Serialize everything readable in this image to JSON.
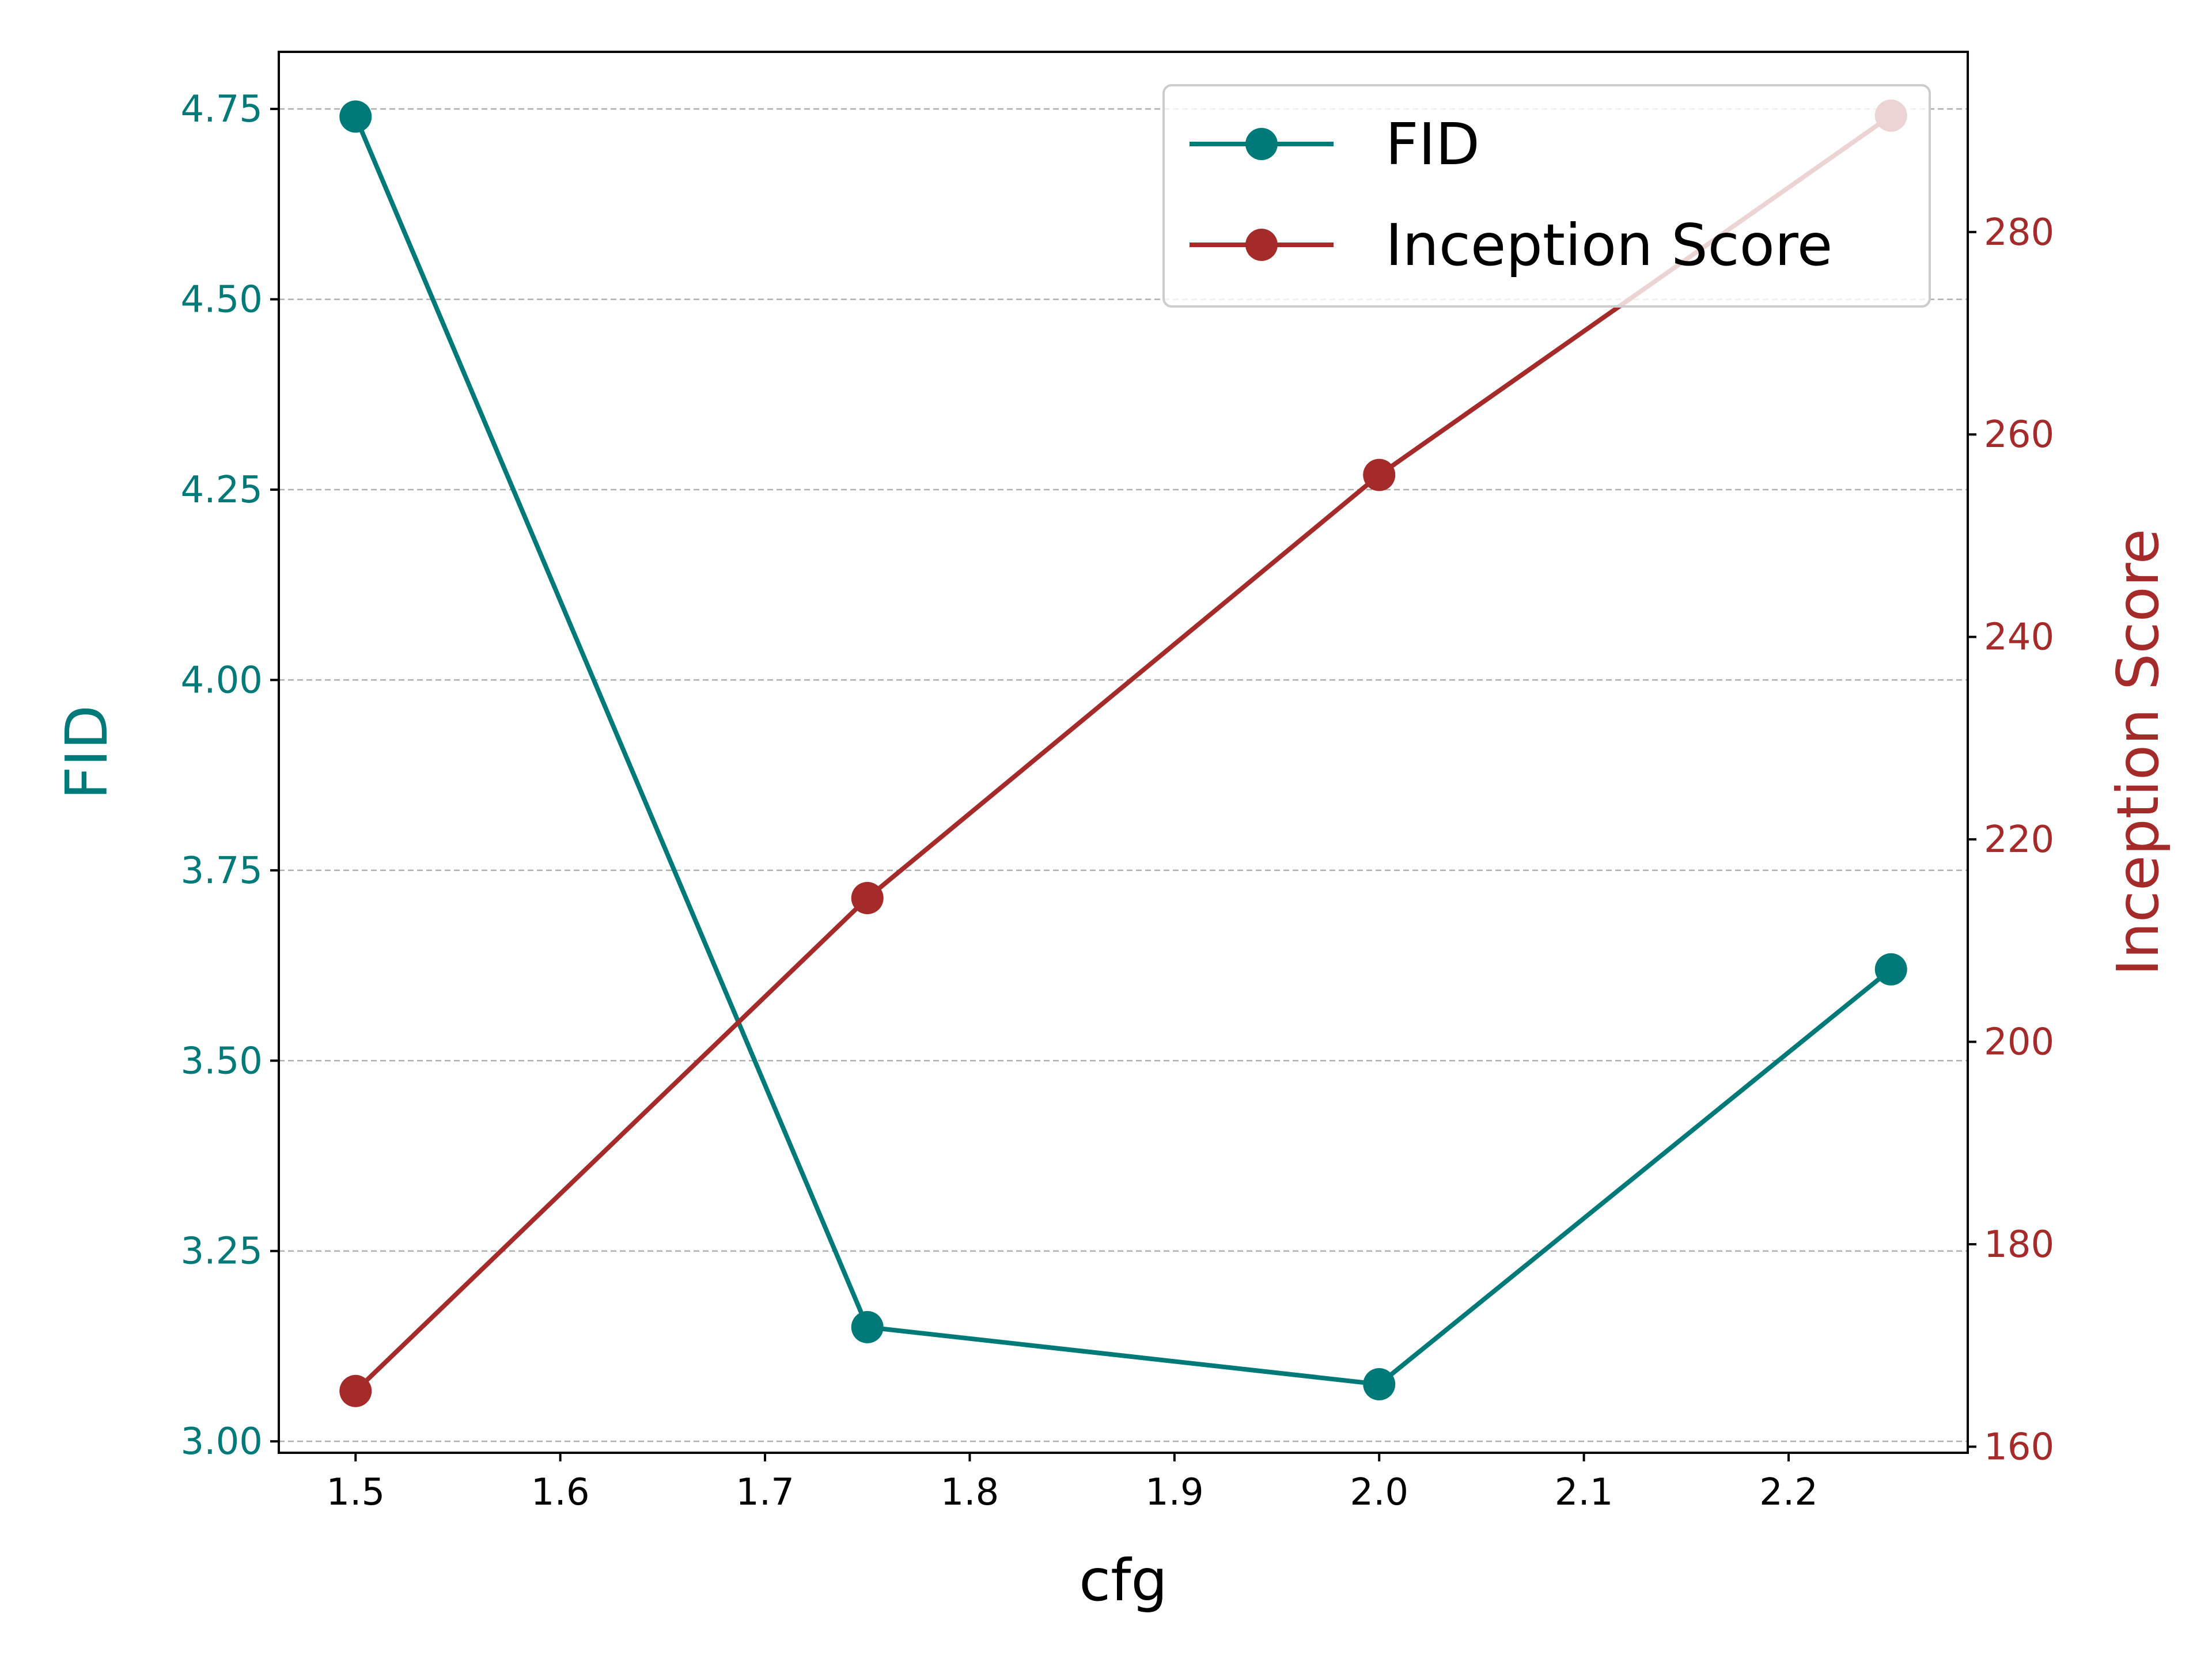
{
  "chart_data": {
    "type": "line",
    "x": [
      1.5,
      1.75,
      2.0,
      2.25
    ],
    "xlabel": "cfg",
    "xlim": [
      1.4625,
      2.2875
    ],
    "xticks": [
      1.5,
      1.6,
      1.7,
      1.8,
      1.9,
      2.0,
      2.1,
      2.2
    ],
    "xtick_labels": [
      "1.5",
      "1.6",
      "1.7",
      "1.8",
      "1.9",
      "2.0",
      "2.1",
      "2.2"
    ],
    "left_axis": {
      "label": "FID",
      "color": "#007a78",
      "ylim": [
        2.985,
        4.825
      ],
      "ticks": [
        3.0,
        3.25,
        3.5,
        3.75,
        4.0,
        4.25,
        4.5,
        4.75
      ],
      "tick_labels": [
        "3.00",
        "3.25",
        "3.50",
        "3.75",
        "4.00",
        "4.25",
        "4.50",
        "4.75"
      ]
    },
    "right_axis": {
      "label": "Inception Score",
      "color": "#a52a2a",
      "ylim": [
        159.4,
        297.8
      ],
      "ticks": [
        160,
        180,
        200,
        220,
        240,
        260,
        280
      ],
      "tick_labels": [
        "160",
        "180",
        "200",
        "220",
        "240",
        "260",
        "280"
      ]
    },
    "series": [
      {
        "name": "FID",
        "axis": "left",
        "color": "#007a78",
        "values": [
          4.74,
          3.15,
          3.075,
          3.62
        ]
      },
      {
        "name": "Inception Score",
        "axis": "right",
        "color": "#a52a2a",
        "values": [
          165.5,
          214.2,
          256.0,
          291.5
        ]
      }
    ],
    "grid": {
      "axis": "y",
      "style": "dashed",
      "color": "#b0b0b0"
    },
    "legend": {
      "position": "top-right"
    }
  }
}
